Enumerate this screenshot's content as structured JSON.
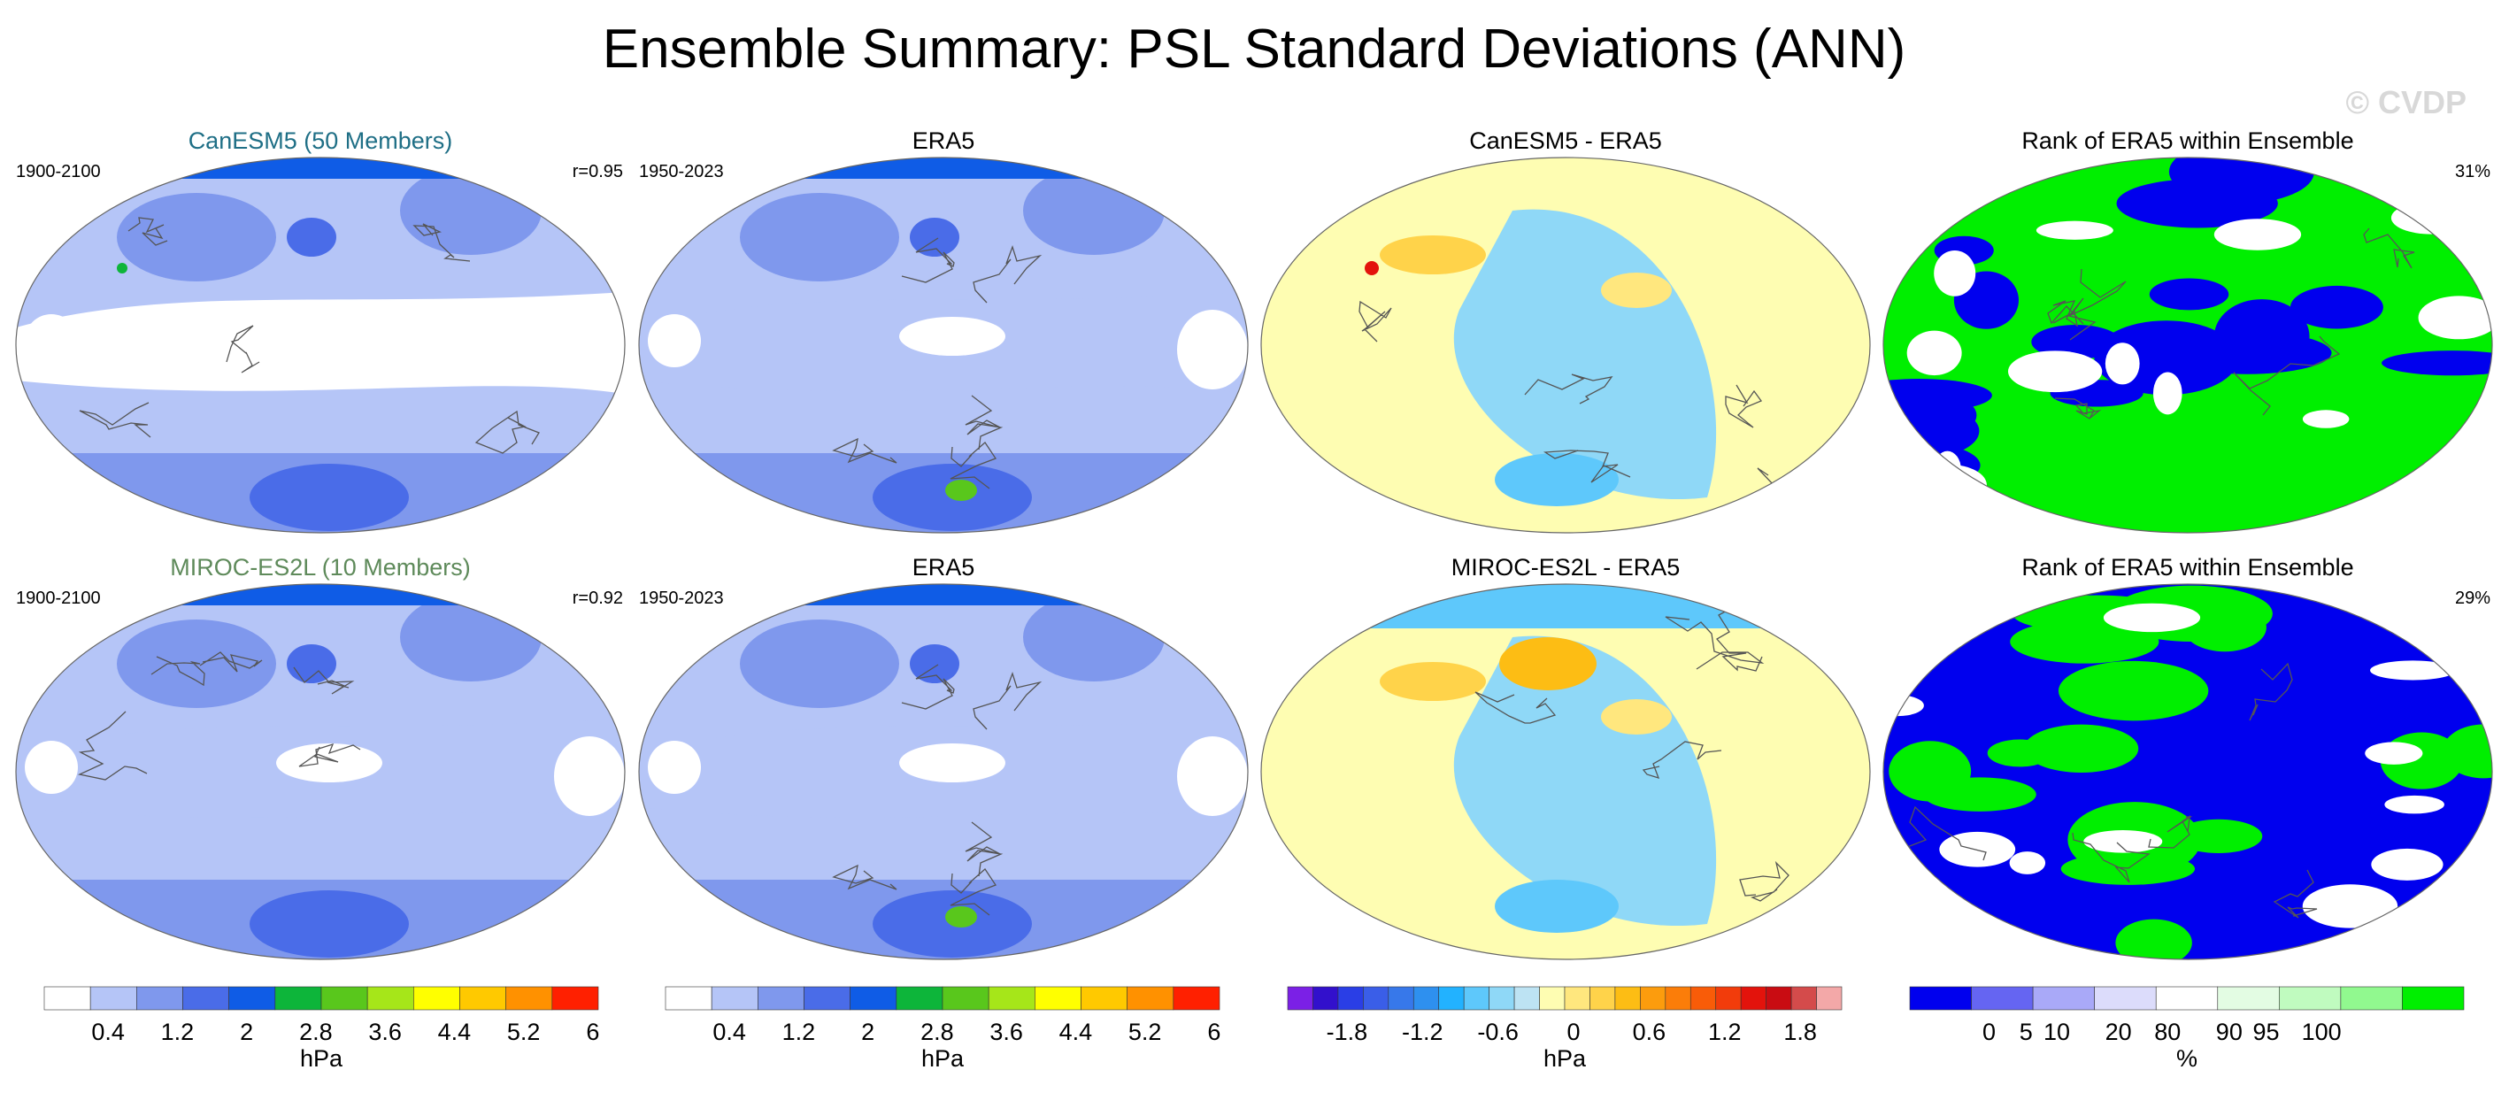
{
  "title": "Ensemble Summary: PSL Standard Deviations (ANN)",
  "watermark": "© CVDP",
  "colors": {
    "std_levels": [
      "#ffffff",
      "#b5c5f7",
      "#7f98ed",
      "#4a6ce8",
      "#0f5ce6",
      "#0db53a",
      "#59c71c",
      "#a6e619",
      "#ffff00",
      "#ffc900",
      "#ff9100",
      "#ff2000"
    ],
    "diff_levels": [
      "#7b20e6",
      "#3210cc",
      "#2a3ee6",
      "#3a5ee8",
      "#3778ea",
      "#2e90ef",
      "#22b2ff",
      "#5ec8fb",
      "#8fd8f7",
      "#bde3f3",
      "#fefdb2",
      "#ffe77e",
      "#ffd34a",
      "#fdbd14",
      "#fc9c0d",
      "#fb7d09",
      "#f95c08",
      "#f23c0b",
      "#e3130c",
      "#c90c12",
      "#d44b4b",
      "#f3a8a8"
    ],
    "rank_levels": [
      "#0000ee",
      "#6565f2",
      "#a9a9f8",
      "#dcdcfb",
      "#ffffff",
      "#e3fce3",
      "#c0fbbf",
      "#91f98f",
      "#00ef00"
    ],
    "ocean_white": "#ffffff",
    "coast": "#555555"
  },
  "rows": [
    {
      "panels": [
        {
          "type": "std",
          "title": "CanESM5 (50 Members)",
          "title_color": "#1f6f86",
          "left_label": "1900-2100",
          "right_label": "r=0.95",
          "seed": 1
        },
        {
          "type": "std",
          "title": "ERA5",
          "title_color": "#000000",
          "left_label": "1950-2023",
          "right_label": "",
          "seed": 2
        },
        {
          "type": "diff",
          "title": "CanESM5 - ERA5",
          "title_color": "#000000",
          "left_label": "",
          "right_label": "",
          "seed": 3
        },
        {
          "type": "rank",
          "title": "Rank of ERA5 within Ensemble",
          "title_color": "#000000",
          "left_label": "",
          "right_label": "31%",
          "seed": 4
        }
      ]
    },
    {
      "panels": [
        {
          "type": "std",
          "title": "MIROC-ES2L (10 Members)",
          "title_color": "#5e8a5a",
          "left_label": "1900-2100",
          "right_label": "r=0.92",
          "seed": 5
        },
        {
          "type": "std",
          "title": "ERA5",
          "title_color": "#000000",
          "left_label": "1950-2023",
          "right_label": "",
          "seed": 2
        },
        {
          "type": "diff",
          "title": "MIROC-ES2L - ERA5",
          "title_color": "#000000",
          "left_label": "",
          "right_label": "",
          "seed": 6
        },
        {
          "type": "rank",
          "title": "Rank of ERA5 within Ensemble",
          "title_color": "#000000",
          "left_label": "",
          "right_label": "29%",
          "seed": 7
        }
      ]
    }
  ],
  "colorbars": [
    {
      "type": "std",
      "ticks": [
        "0.4",
        "1.2",
        "2",
        "2.8",
        "3.6",
        "4.4",
        "5.2",
        "6"
      ],
      "unit": "hPa"
    },
    {
      "type": "std",
      "ticks": [
        "0.4",
        "1.2",
        "2",
        "2.8",
        "3.6",
        "4.4",
        "5.2",
        "6"
      ],
      "unit": "hPa"
    },
    {
      "type": "diff",
      "ticks": [
        "-1.8",
        "-1.2",
        "-0.6",
        "0",
        "0.6",
        "1.2",
        "1.8"
      ],
      "unit": "hPa"
    },
    {
      "type": "rank",
      "ticks": [
        "0",
        "5",
        "10",
        "20",
        "80",
        "90",
        "95",
        "100"
      ],
      "unit": "%"
    }
  ],
  "chart_data": [
    {
      "type": "heatmap",
      "title": "CanESM5 (50 Members)",
      "period": "1900-2100",
      "pattern_correlation": 0.95,
      "variable": "PSL standard deviation",
      "units": "hPa",
      "levels": [
        0.4,
        0.8,
        1.2,
        1.6,
        2,
        2.4,
        2.8,
        3.2,
        3.6,
        4,
        4.4,
        4.8,
        5.2,
        5.6,
        6
      ]
    },
    {
      "type": "heatmap",
      "title": "ERA5",
      "period": "1950-2023",
      "variable": "PSL standard deviation",
      "units": "hPa"
    },
    {
      "type": "heatmap",
      "title": "CanESM5 - ERA5",
      "units": "hPa",
      "levels": [
        -1.8,
        -1.2,
        -0.6,
        0,
        0.6,
        1.2,
        1.8
      ]
    },
    {
      "type": "heatmap",
      "title": "Rank of ERA5 within Ensemble",
      "units": "%",
      "summary_percent": 31,
      "levels": [
        0,
        5,
        10,
        20,
        80,
        90,
        95,
        100
      ]
    },
    {
      "type": "heatmap",
      "title": "MIROC-ES2L (10 Members)",
      "period": "1900-2100",
      "pattern_correlation": 0.92,
      "variable": "PSL standard deviation",
      "units": "hPa"
    },
    {
      "type": "heatmap",
      "title": "ERA5",
      "period": "1950-2023",
      "variable": "PSL standard deviation",
      "units": "hPa"
    },
    {
      "type": "heatmap",
      "title": "MIROC-ES2L - ERA5",
      "units": "hPa"
    },
    {
      "type": "heatmap",
      "title": "Rank of ERA5 within Ensemble",
      "units": "%",
      "summary_percent": 29
    }
  ]
}
